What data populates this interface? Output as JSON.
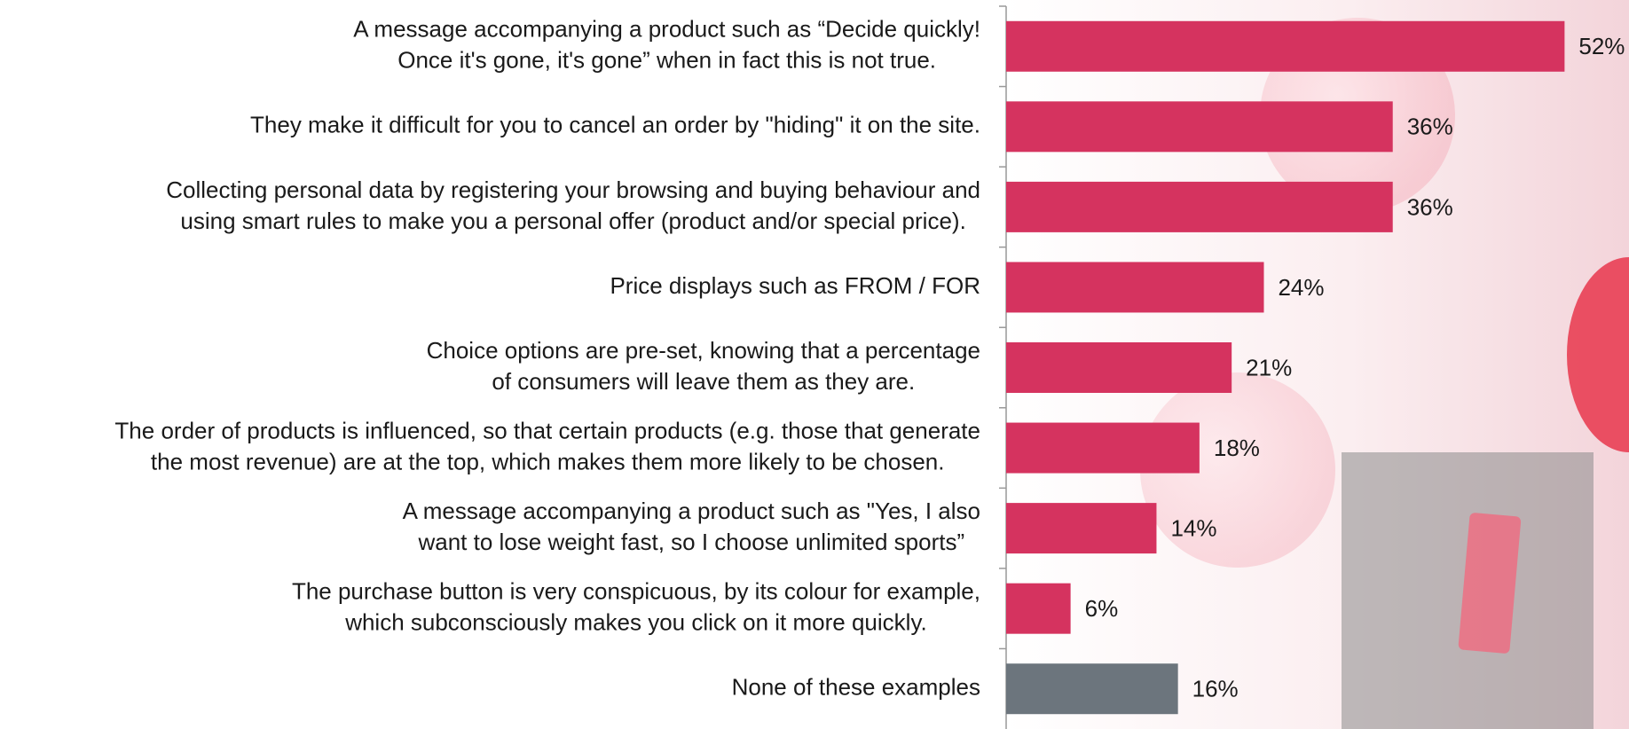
{
  "chart_data": {
    "type": "barh",
    "categories": [
      [
        "A message accompanying a product such as “Decide quickly!",
        "Once it's gone, it's gone” when in fact this is not true."
      ],
      [
        "They make it difficult for you to cancel an order by \"hiding\" it on the site."
      ],
      [
        "Collecting personal data by registering your browsing and buying behaviour and",
        "using smart rules to make you a personal offer (product and/or special price)."
      ],
      [
        "Price displays such as FROM / FOR"
      ],
      [
        "Choice options are pre-set, knowing that a percentage",
        "of consumers will leave them as they are."
      ],
      [
        "The order of products is influenced, so that certain products (e.g. those that generate",
        "the most revenue) are at the top, which makes them more likely to be chosen."
      ],
      [
        "A message accompanying a product such as \"Yes, I also",
        "want to lose weight fast, so I choose unlimited sports”"
      ],
      [
        "The purchase button is very conspicuous, by its colour for example,",
        "which subconsciously makes you click on it more quickly."
      ],
      [
        "None of these examples"
      ]
    ],
    "values": [
      52,
      36,
      36,
      24,
      21,
      18,
      14,
      6,
      16
    ],
    "value_labels": [
      "52%",
      "36%",
      "36%",
      "24%",
      "21%",
      "18%",
      "14%",
      "6%",
      "16%"
    ],
    "colors": [
      "#d5335f",
      "#d5335f",
      "#d5335f",
      "#d5335f",
      "#d5335f",
      "#d5335f",
      "#d5335f",
      "#d5335f",
      "#6c757d"
    ],
    "xlim": [
      0,
      58
    ]
  }
}
